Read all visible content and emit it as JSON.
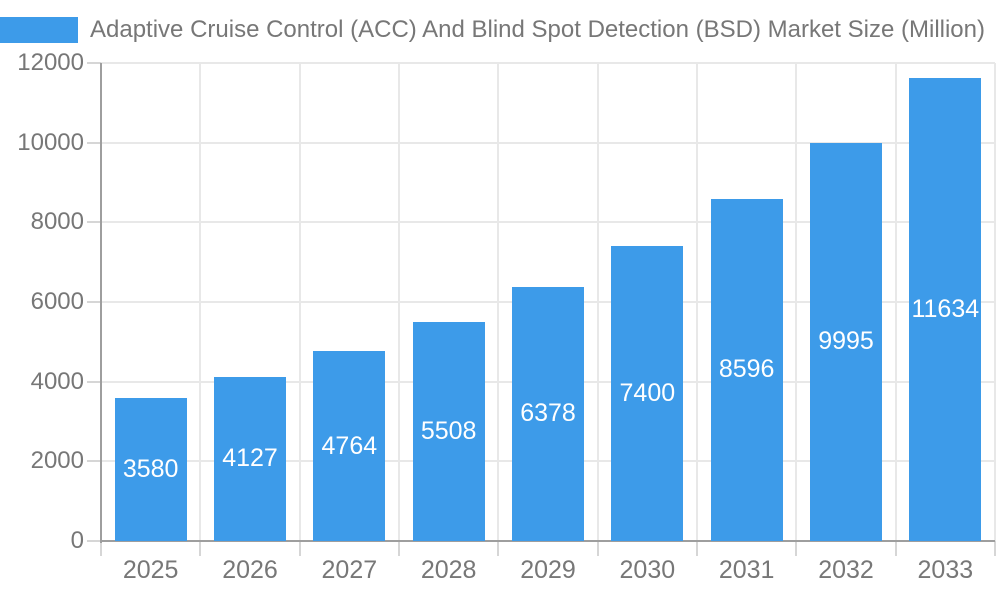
{
  "legend": {
    "title": "Adaptive Cruise Control (ACC) And Blind Spot Detection (BSD) Market Size (Million)"
  },
  "chart_data": {
    "type": "bar",
    "title": "Adaptive Cruise Control (ACC) And Blind Spot Detection (BSD) Market Size (Million)",
    "categories": [
      "2025",
      "2026",
      "2027",
      "2028",
      "2029",
      "2030",
      "2031",
      "2032",
      "2033"
    ],
    "values": [
      3580,
      4127,
      4764,
      5508,
      6378,
      7400,
      8596,
      9995,
      11634
    ],
    "xlabel": "",
    "ylabel": "",
    "ylim": [
      0,
      12000
    ],
    "yticks": [
      0,
      2000,
      4000,
      6000,
      8000,
      10000,
      12000
    ],
    "grid": true,
    "legend_position": "top-left",
    "bar_value_labels": "inside-center-white",
    "colors": {
      "bar": "#3D9BE9",
      "axis_text": "#777777",
      "grid_line": "#e8e8e8",
      "axis_line": "#9e9e9e",
      "bar_label": "#ffffff"
    }
  }
}
